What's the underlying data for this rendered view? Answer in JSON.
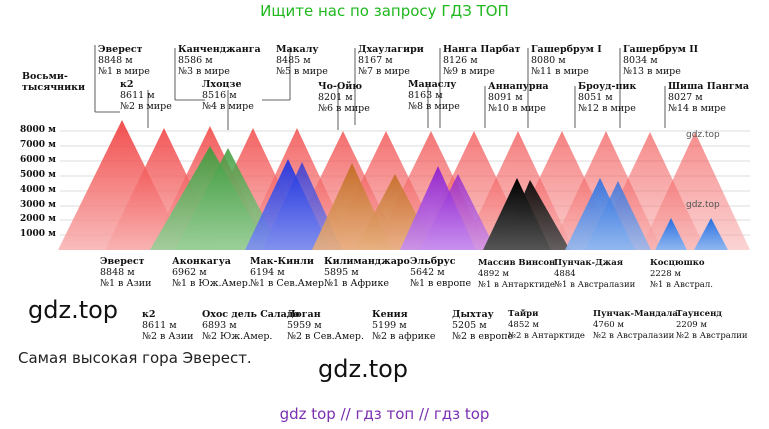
{
  "header": "Ищите нас по запросу ГДЗ ТОП",
  "left_caption": {
    "line1": "Восьми-",
    "line2": "тысячники"
  },
  "y_axis": [
    "8000 м",
    "7000 м",
    "6000 м",
    "5000 м",
    "4000 м",
    "3000 м",
    "2000 м",
    "1000 м"
  ],
  "top_labels": [
    {
      "name": "Эверест",
      "height": "8848 м",
      "rank": "№1 в мире"
    },
    {
      "name": "к2",
      "height": "8611 м",
      "rank": "№2 в мире"
    },
    {
      "name": "Канченджанга",
      "height": "8586 м",
      "rank": "№3 в мире"
    },
    {
      "name": "Лхоцзе",
      "height": "8516 м",
      "rank": "№4 в мире"
    },
    {
      "name": "Макалу",
      "height": "8485 м",
      "rank": "№5 в мире"
    },
    {
      "name": "Чо-Ойю",
      "height": "8201 м",
      "rank": "№6 в мире"
    },
    {
      "name": "Дхаулагири",
      "height": "8167 м",
      "rank": "№7 в мире"
    },
    {
      "name": "Манаслу",
      "height": "8163 м",
      "rank": "№8 в мире"
    },
    {
      "name": "Нанга Парбат",
      "height": "8126 м",
      "rank": "№9 в мире"
    },
    {
      "name": "Аннапурна",
      "height": "8091 м",
      "rank": "№10 в мире"
    },
    {
      "name": "Гашербрум I",
      "height": "8080 м",
      "rank": "№11 в мире"
    },
    {
      "name": "Броуд-пик",
      "height": "8051 м",
      "rank": "№12 в мире"
    },
    {
      "name": "Гашербрум II",
      "height": "8034 м",
      "rank": "№13 в мире"
    },
    {
      "name": "Шиша Пангма",
      "height": "8027 м",
      "rank": "№14 в мире"
    }
  ],
  "bottom_labels": [
    {
      "name": "Эверест",
      "height": "8848 м",
      "rank": "№1 в Азии"
    },
    {
      "name": "к2",
      "height": "8611 м",
      "rank": "№2 в Азии"
    },
    {
      "name": "Аконкагуа",
      "height": "6962 м",
      "rank": "№1 в Юж.Амер."
    },
    {
      "name": "Охос дель Саладо",
      "height": "6893 м",
      "rank": "№2 Юж.Амер."
    },
    {
      "name": "Мак-Кинли",
      "height": "6194 м",
      "rank": "№1 в Сев.Амер."
    },
    {
      "name": "Логан",
      "height": "5959 м",
      "rank": "№2 в Сев.Амер."
    },
    {
      "name": "Килиманджаро",
      "height": "5895 м",
      "rank": "№1 в Африке"
    },
    {
      "name": "Кения",
      "height": "5199 м",
      "rank": "№2 в африке"
    },
    {
      "name": "Эльбрус",
      "height": "5642 м",
      "rank": "№1 в европе"
    },
    {
      "name": "Дыхтау",
      "height": "5205 м",
      "rank": "№2 в европе"
    },
    {
      "name": "Массив Винсон",
      "height": "4892 м",
      "rank": "№1 в Антарктиде"
    },
    {
      "name": "Тайри",
      "height": "4852 м",
      "rank": "№2 в Антарктиде"
    },
    {
      "name": "Пунчак-Джая",
      "height": "4884",
      "rank": "№1 в Австралазии"
    },
    {
      "name": "Пунчак-Мандала",
      "height": "4760 м",
      "rank": "№2 в Австралазии"
    },
    {
      "name": "Косцюшко",
      "height": "2228 м",
      "rank": "№1 в Австрал."
    },
    {
      "name": "Таунсенд",
      "height": "2209 м",
      "rank": "№2 в Австралии"
    }
  ],
  "watermarks": {
    "chart_top": "gdz.top",
    "chart_mid": "gdz.top",
    "left": "gdz.top",
    "center": "gdz.top"
  },
  "caption": "Самая высокая гора Эверест.",
  "footer": "gdz top  //  гдз топ  //  гдз top",
  "colors": {
    "header": "#1fb81f",
    "footer": "#7b2fb0",
    "asia": "#f05050",
    "south_america": "#3f9a3f",
    "north_america": "#2a3fe0",
    "africa": "#d07a2a",
    "europe": "#9a2ad0",
    "antarctica": "#111111",
    "australasia": "#3a7ee0"
  }
}
